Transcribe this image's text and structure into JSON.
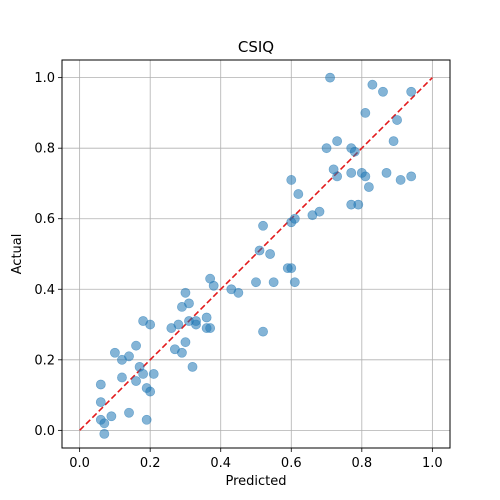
{
  "chart_data": {
    "type": "scatter",
    "title": "CSIQ",
    "xlabel": "Predicted",
    "ylabel": "Actual",
    "xlim": [
      -0.05,
      1.05
    ],
    "ylim": [
      -0.05,
      1.05
    ],
    "xticks": [
      "0.0",
      "0.2",
      "0.4",
      "0.6",
      "0.8",
      "1.0"
    ],
    "yticks": [
      "0.0",
      "0.2",
      "0.4",
      "0.6",
      "0.8",
      "1.0"
    ],
    "grid": true,
    "point_color": "#1f77b4",
    "reference_line": {
      "style": "dashed",
      "color": "#e31a1c",
      "from": [
        0,
        0
      ],
      "to": [
        1,
        1
      ]
    },
    "x": [
      0.06,
      0.06,
      0.07,
      0.07,
      0.06,
      0.09,
      0.1,
      0.12,
      0.12,
      0.14,
      0.14,
      0.16,
      0.16,
      0.17,
      0.18,
      0.18,
      0.19,
      0.19,
      0.2,
      0.2,
      0.21,
      0.26,
      0.27,
      0.28,
      0.29,
      0.29,
      0.3,
      0.3,
      0.31,
      0.31,
      0.32,
      0.33,
      0.33,
      0.36,
      0.36,
      0.37,
      0.37,
      0.38,
      0.43,
      0.45,
      0.5,
      0.51,
      0.52,
      0.52,
      0.54,
      0.55,
      0.59,
      0.6,
      0.6,
      0.6,
      0.61,
      0.61,
      0.62,
      0.66,
      0.68,
      0.7,
      0.71,
      0.72,
      0.73,
      0.73,
      0.77,
      0.77,
      0.77,
      0.78,
      0.79,
      0.8,
      0.81,
      0.81,
      0.82,
      0.83,
      0.86,
      0.87,
      0.89,
      0.9,
      0.91,
      0.94,
      0.94
    ],
    "y": [
      0.13,
      0.03,
      0.02,
      -0.01,
      0.08,
      0.04,
      0.22,
      0.2,
      0.15,
      0.21,
      0.05,
      0.14,
      0.24,
      0.18,
      0.16,
      0.31,
      0.03,
      0.12,
      0.11,
      0.3,
      0.16,
      0.29,
      0.23,
      0.3,
      0.22,
      0.35,
      0.39,
      0.25,
      0.31,
      0.36,
      0.18,
      0.31,
      0.3,
      0.29,
      0.32,
      0.29,
      0.43,
      0.41,
      0.4,
      0.39,
      0.42,
      0.51,
      0.58,
      0.28,
      0.5,
      0.42,
      0.46,
      0.46,
      0.59,
      0.71,
      0.6,
      0.42,
      0.67,
      0.61,
      0.62,
      0.8,
      1.0,
      0.74,
      0.72,
      0.82,
      0.8,
      0.73,
      0.64,
      0.79,
      0.64,
      0.73,
      0.9,
      0.72,
      0.69,
      0.98,
      0.96,
      0.73,
      0.82,
      0.88,
      0.71,
      0.96,
      0.72
    ]
  }
}
